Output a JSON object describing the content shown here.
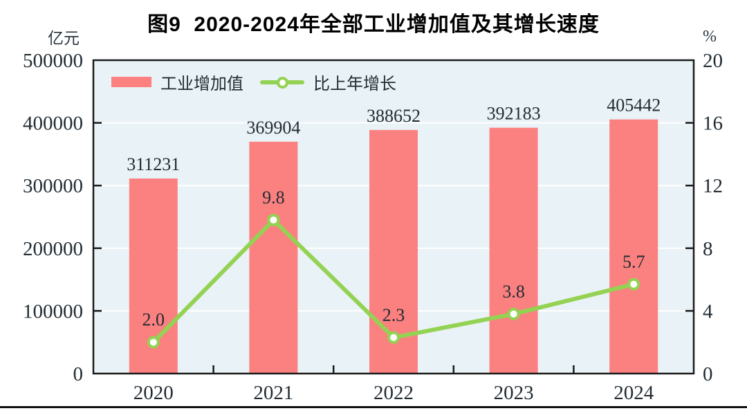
{
  "header": {
    "title": "图9  2020-2024年全部工业增加值及其增长速度"
  },
  "chart_data": {
    "type": "bar",
    "title": "图9  2020-2024年全部工业增加值及其增长速度",
    "categories": [
      "2020",
      "2021",
      "2022",
      "2023",
      "2024"
    ],
    "series": [
      {
        "name": "工业增加值",
        "type": "bar",
        "axis": "left",
        "values": [
          311231,
          369904,
          388652,
          392183,
          405442
        ],
        "labels": [
          "311231",
          "369904",
          "388652",
          "392183",
          "405442"
        ],
        "color": "#fb8080"
      },
      {
        "name": "比上年增长",
        "type": "line",
        "axis": "right",
        "values": [
          2.0,
          9.8,
          2.3,
          3.8,
          5.7
        ],
        "labels": [
          "2.0",
          "9.8",
          "2.3",
          "3.8",
          "5.7"
        ],
        "color": "#94d253"
      }
    ],
    "left_axis": {
      "unit": "亿元",
      "min": 0,
      "max": 500000,
      "ticks": [
        0,
        100000,
        200000,
        300000,
        400000,
        500000
      ],
      "tick_labels": [
        "0",
        "100000",
        "200000",
        "300000",
        "400000",
        "500000"
      ]
    },
    "right_axis": {
      "unit": "%",
      "min": 0,
      "max": 20,
      "ticks": [
        0,
        4,
        8,
        12,
        16,
        20
      ],
      "tick_labels": [
        "0",
        "4",
        "8",
        "12",
        "16",
        "20"
      ]
    },
    "grid": true,
    "legend_position": "top-left-inside",
    "plot_bg_color": "#e9f2f6",
    "gridline_color": "#ffffff",
    "border_color": "#1a1a1a",
    "label_color": "#222c33"
  }
}
